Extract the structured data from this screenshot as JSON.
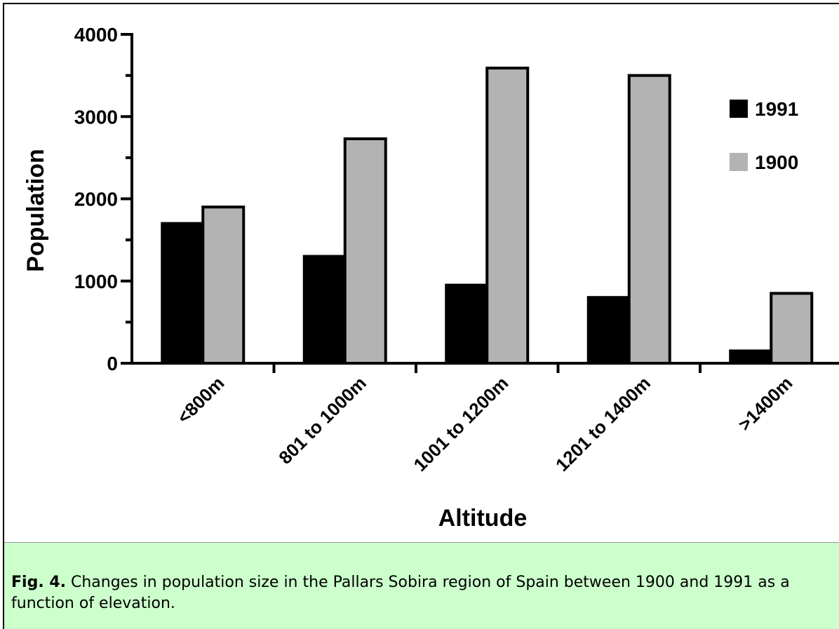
{
  "chart_data": {
    "type": "bar",
    "x_label": "Altitude",
    "y_label": "Population",
    "categories": [
      "<800m",
      "801 to 1000m",
      "1001 to 1200m",
      "1201 to 1400m",
      ">1400m"
    ],
    "series": [
      {
        "name": "1991",
        "color": "#000000",
        "values": [
          1700,
          1300,
          950,
          800,
          150
        ]
      },
      {
        "name": "1900",
        "color": "#b3b3b3",
        "values": [
          1900,
          2730,
          3590,
          3500,
          850
        ]
      }
    ],
    "ylim": [
      0,
      4000
    ],
    "yticks": [
      0,
      1000,
      2000,
      3000,
      4000
    ],
    "grid": false,
    "legend": "right"
  },
  "caption": {
    "label": "Fig. 4.",
    "text": "Changes in population size in the Pallars Sobira region of Spain between 1900 and 1991 as a function of elevation."
  }
}
